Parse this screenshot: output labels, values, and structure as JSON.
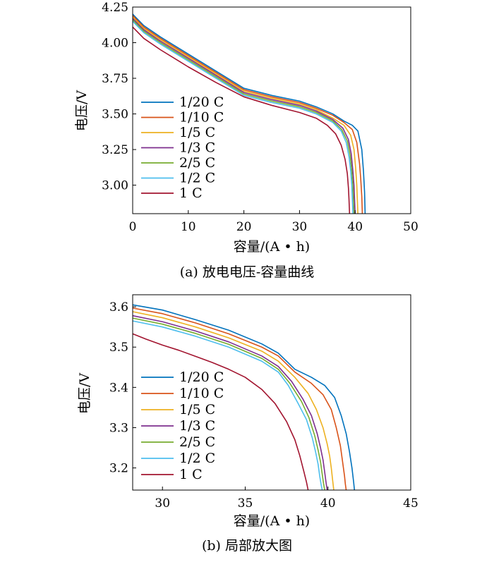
{
  "charts": [
    {
      "type": "line",
      "caption": "(a)  放电电压-容量曲线",
      "xlabel": "容量/(A • h)",
      "ylabel": "电压/V",
      "xlim": [
        0,
        50
      ],
      "ylim": [
        2.8,
        4.25
      ],
      "xticks": [
        0,
        10,
        20,
        30,
        40,
        50
      ],
      "xtick_labels": [
        "0",
        "10",
        "20",
        "30",
        "40",
        "50"
      ],
      "yticks": [
        3.0,
        3.25,
        3.5,
        3.75,
        4.0,
        4.25
      ],
      "ytick_labels": [
        "3.00",
        "3.25",
        "3.50",
        "3.75",
        "4.00",
        "4.25"
      ],
      "legend_position": "bottom-left",
      "series": [
        {
          "name": "1/20 C",
          "color": "#0072BD",
          "x": [
            0,
            2,
            5,
            10,
            15,
            20,
            25,
            30,
            33,
            36,
            38,
            39.5,
            40.5,
            41.2,
            41.5,
            41.7,
            41.8
          ],
          "y": [
            4.2,
            4.12,
            4.04,
            3.92,
            3.8,
            3.68,
            3.63,
            3.59,
            3.55,
            3.5,
            3.45,
            3.42,
            3.38,
            3.25,
            3.1,
            2.95,
            2.8
          ]
        },
        {
          "name": "1/10 C",
          "color": "#D95319",
          "x": [
            0,
            2,
            5,
            10,
            15,
            20,
            25,
            30,
            33,
            36,
            38,
            39.5,
            40.3,
            40.8,
            41.0,
            41.2,
            41.3
          ],
          "y": [
            4.19,
            4.11,
            4.03,
            3.91,
            3.79,
            3.67,
            3.62,
            3.58,
            3.54,
            3.49,
            3.44,
            3.39,
            3.3,
            3.15,
            3.05,
            2.92,
            2.8
          ]
        },
        {
          "name": "1/5 C",
          "color": "#EDB120",
          "x": [
            0,
            2,
            5,
            10,
            15,
            20,
            25,
            30,
            33,
            36,
            38,
            39.2,
            39.8,
            40.1,
            40.3,
            40.4,
            40.5
          ],
          "y": [
            4.18,
            4.1,
            4.02,
            3.9,
            3.78,
            3.66,
            3.61,
            3.57,
            3.53,
            3.47,
            3.42,
            3.35,
            3.25,
            3.12,
            3.0,
            2.9,
            2.8
          ]
        },
        {
          "name": "1/3 C",
          "color": "#7E2F8E",
          "x": [
            0,
            2,
            5,
            10,
            15,
            20,
            25,
            30,
            33,
            36,
            37.8,
            38.8,
            39.3,
            39.6,
            39.8,
            39.9,
            40.0
          ],
          "y": [
            4.17,
            4.09,
            4.01,
            3.89,
            3.77,
            3.65,
            3.6,
            3.56,
            3.52,
            3.46,
            3.4,
            3.32,
            3.22,
            3.1,
            3.0,
            2.9,
            2.8
          ]
        },
        {
          "name": "2/5 C",
          "color": "#77AC30",
          "x": [
            0,
            2,
            5,
            10,
            15,
            20,
            25,
            30,
            33,
            36,
            37.6,
            38.6,
            39.1,
            39.4,
            39.6,
            39.7,
            39.8
          ],
          "y": [
            4.16,
            4.08,
            4.0,
            3.88,
            3.76,
            3.64,
            3.59,
            3.55,
            3.51,
            3.45,
            3.39,
            3.31,
            3.21,
            3.1,
            3.0,
            2.9,
            2.8
          ]
        },
        {
          "name": "1/2 C",
          "color": "#4DBEEE",
          "x": [
            0,
            2,
            5,
            10,
            15,
            20,
            25,
            30,
            33,
            36,
            37.5,
            38.4,
            38.9,
            39.2,
            39.4,
            39.5,
            39.6
          ],
          "y": [
            4.15,
            4.07,
            3.99,
            3.87,
            3.75,
            3.63,
            3.58,
            3.54,
            3.5,
            3.44,
            3.38,
            3.3,
            3.2,
            3.1,
            3.0,
            2.9,
            2.8
          ]
        },
        {
          "name": "1 C",
          "color": "#A2142F",
          "x": [
            0,
            2,
            5,
            10,
            15,
            20,
            25,
            30,
            33,
            35,
            36.5,
            37.5,
            38.2,
            38.6,
            38.8,
            38.9,
            39.0
          ],
          "y": [
            4.11,
            4.03,
            3.95,
            3.83,
            3.72,
            3.62,
            3.56,
            3.51,
            3.47,
            3.42,
            3.36,
            3.28,
            3.18,
            3.08,
            2.98,
            2.9,
            2.8
          ]
        }
      ]
    },
    {
      "type": "line",
      "caption": "(b)  局部放大图",
      "xlabel": "容量/(A • h)",
      "ylabel": "电压/V",
      "xlim": [
        28.2,
        45
      ],
      "ylim": [
        3.145,
        3.63
      ],
      "xticks": [
        30,
        35,
        40,
        45
      ],
      "xtick_labels": [
        "30",
        "35",
        "40",
        "45"
      ],
      "yticks": [
        3.2,
        3.3,
        3.4,
        3.5,
        3.6
      ],
      "ytick_labels": [
        "3.2",
        "3.3",
        "3.4",
        "3.5",
        "3.6"
      ],
      "legend_position": "bottom-left",
      "series": [
        {
          "name": "1/20 C",
          "color": "#0072BD",
          "x": [
            28.2,
            30,
            32,
            34,
            36,
            37,
            38,
            39,
            39.8,
            40.4,
            40.8,
            41.1,
            41.3,
            41.45,
            41.55,
            41.6
          ],
          "y": [
            3.605,
            3.592,
            3.568,
            3.542,
            3.508,
            3.485,
            3.445,
            3.425,
            3.405,
            3.375,
            3.33,
            3.285,
            3.24,
            3.2,
            3.165,
            3.145
          ]
        },
        {
          "name": "1/10 C",
          "color": "#D95319",
          "x": [
            28.2,
            30,
            32,
            34,
            36,
            37,
            38,
            39,
            39.7,
            40.2,
            40.5,
            40.75,
            40.9,
            41.0,
            41.05,
            41.1
          ],
          "y": [
            3.597,
            3.583,
            3.56,
            3.533,
            3.5,
            3.478,
            3.438,
            3.41,
            3.382,
            3.345,
            3.3,
            3.255,
            3.21,
            3.18,
            3.16,
            3.145
          ]
        },
        {
          "name": "1/5 C",
          "color": "#EDB120",
          "x": [
            28.2,
            30,
            32,
            34,
            36,
            37,
            38,
            38.8,
            39.3,
            39.7,
            39.95,
            40.1,
            40.2,
            40.28,
            40.35
          ],
          "y": [
            3.588,
            3.573,
            3.55,
            3.523,
            3.49,
            3.465,
            3.425,
            3.385,
            3.345,
            3.3,
            3.26,
            3.23,
            3.2,
            3.17,
            3.145
          ]
        },
        {
          "name": "1/3 C",
          "color": "#7E2F8E",
          "x": [
            28.2,
            30,
            32,
            34,
            36,
            37,
            37.8,
            38.5,
            39.0,
            39.35,
            39.55,
            39.7,
            39.8,
            39.88,
            39.95
          ],
          "y": [
            3.578,
            3.563,
            3.54,
            3.513,
            3.478,
            3.452,
            3.415,
            3.37,
            3.33,
            3.285,
            3.25,
            3.22,
            3.19,
            3.165,
            3.145
          ]
        },
        {
          "name": "2/5 C",
          "color": "#77AC30",
          "x": [
            28.2,
            30,
            32,
            34,
            36,
            37,
            37.7,
            38.4,
            38.85,
            39.2,
            39.4,
            39.55,
            39.65,
            39.73,
            39.8
          ],
          "y": [
            3.572,
            3.557,
            3.534,
            3.507,
            3.472,
            3.445,
            3.41,
            3.365,
            3.325,
            3.28,
            3.245,
            3.215,
            3.185,
            3.162,
            3.145
          ]
        },
        {
          "name": "1/2 C",
          "color": "#4DBEEE",
          "x": [
            28.2,
            30,
            32,
            34,
            36,
            37,
            37.6,
            38.2,
            38.7,
            39.05,
            39.25,
            39.4,
            39.5,
            39.58,
            39.65
          ],
          "y": [
            3.565,
            3.55,
            3.527,
            3.5,
            3.465,
            3.438,
            3.405,
            3.36,
            3.32,
            3.275,
            3.24,
            3.21,
            3.18,
            3.16,
            3.145
          ]
        },
        {
          "name": "1 C",
          "color": "#A2142F",
          "x": [
            28.2,
            29,
            30,
            31,
            32,
            33,
            34,
            35,
            36,
            36.8,
            37.5,
            38.0,
            38.3,
            38.55,
            38.7,
            38.8
          ],
          "y": [
            3.533,
            3.52,
            3.505,
            3.492,
            3.477,
            3.462,
            3.445,
            3.425,
            3.395,
            3.36,
            3.315,
            3.27,
            3.23,
            3.19,
            3.165,
            3.145
          ]
        }
      ]
    }
  ]
}
